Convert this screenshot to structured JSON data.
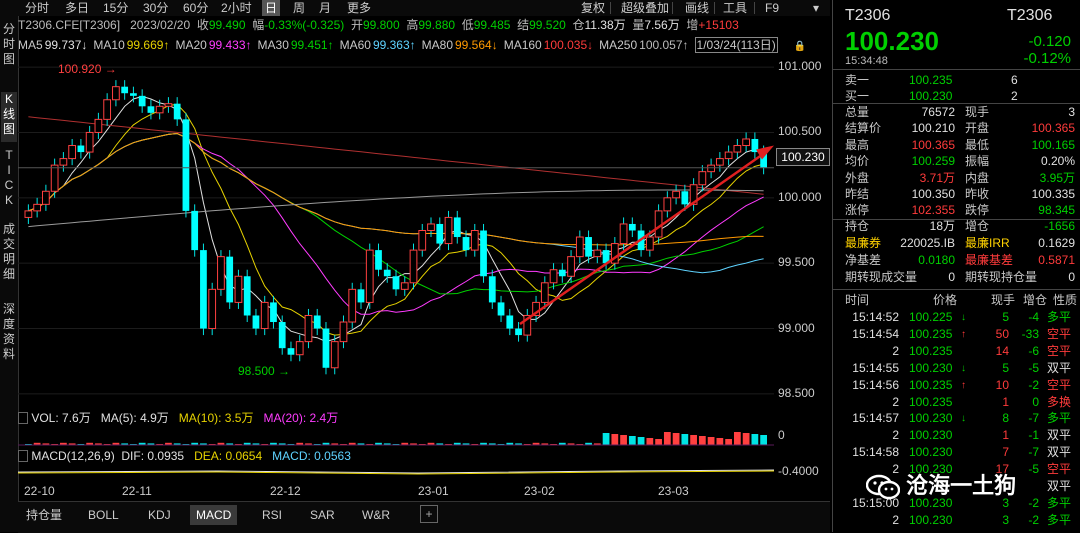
{
  "left_tabs": [
    "分时图",
    "K线图",
    "TICK",
    "成交明细",
    "深度资料"
  ],
  "toolbar": {
    "periods": [
      "分时",
      "多日",
      "15分",
      "30分",
      "60分",
      "2小时",
      "日",
      "周",
      "月",
      "更多"
    ],
    "active_period": "日",
    "tools": [
      "复权",
      "超级叠加",
      "画线",
      "工具",
      "F9"
    ],
    "menu_icon": "chevron-down-icon"
  },
  "info": {
    "symbol": "T2306.CFE[T2306]",
    "date": "2023/02/20",
    "close_label": "收",
    "close": "99.490",
    "change_label": "幅",
    "change": "-0.33%(-0.325)",
    "open_label": "开",
    "open": "99.800",
    "high_label": "高",
    "high": "99.880",
    "low_label": "低",
    "low": "99.485",
    "settle_label": "结",
    "settle": "99.520",
    "oi_label": "仓",
    "oi": "11.38万",
    "vol_label": "量",
    "vol": "7.56万",
    "incr_label": "增",
    "incr": "+15103"
  },
  "ma": [
    {
      "label": "MA5",
      "value": "99.737↓",
      "color": "#e0e0e0"
    },
    {
      "label": "MA10",
      "value": "99.669↑",
      "color": "#e6d200"
    },
    {
      "label": "MA20",
      "value": "99.433↑",
      "color": "#ff3cff"
    },
    {
      "label": "MA30",
      "value": "99.451↑",
      "color": "#00d000"
    },
    {
      "label": "MA60",
      "value": "99.363↑",
      "color": "#5fd3ff"
    },
    {
      "label": "MA80",
      "value": "99.564↓",
      "color": "#ff9900"
    },
    {
      "label": "MA160",
      "value": "100.035↓",
      "color": "#ff3b3b"
    },
    {
      "label": "MA250",
      "value": "100.057↑",
      "color": "#bbbbbb"
    }
  ],
  "ma_extra": "1/03/24(113日)",
  "price_axis": {
    "ticks": [
      "101.000",
      "100.500",
      "100.000",
      "99.500",
      "99.000",
      "98.500"
    ],
    "current": "100.230"
  },
  "annotations": {
    "high_mark": "100.920",
    "low_mark": "98.500"
  },
  "volume": {
    "title": "VOL: 7.6万",
    "ma5": "MA(5): 4.9万",
    "ma10": "MA(10): 3.5万",
    "ma20": "MA(20): 2.4万",
    "axis_label": "0"
  },
  "macd": {
    "title": "MACD(12,26,9)",
    "dif": "DIF: 0.0935",
    "dea": "DEA: 0.0654",
    "macd": "MACD: 0.0563",
    "axis_label": "-0.4000"
  },
  "x_axis": [
    "22-10",
    "22-11",
    "22-12",
    "23-01",
    "23-02",
    "23-03"
  ],
  "bottom_tabs": [
    "持仓量",
    "BOLL",
    "KDJ",
    "MACD",
    "RSI",
    "SAR",
    "W&R"
  ],
  "active_bottom_tab": "MACD",
  "bottom_icons": [
    "add-icon"
  ],
  "quote": {
    "code": "T2306",
    "code2": "T2306",
    "price": "100.230",
    "change": "-0.120",
    "change_pct": "-0.12%",
    "time": "15:34:48",
    "ask_label": "卖一",
    "ask": "100.235",
    "ask_vol": "6",
    "bid_label": "买一",
    "bid": "100.230",
    "bid_vol": "2",
    "stats": [
      {
        "l1": "总量",
        "v1": "76572",
        "c1": "#e0e0e0",
        "l2": "现手",
        "v2": "3",
        "c2": "#e0e0e0"
      },
      {
        "l1": "结算价",
        "v1": "100.210",
        "c1": "#e0e0e0",
        "l2": "开盘",
        "v2": "100.365",
        "c2": "#ff3b3b"
      },
      {
        "l1": "最高",
        "v1": "100.365",
        "c1": "#ff3b3b",
        "l2": "最低",
        "v2": "100.165",
        "c2": "#00d000"
      },
      {
        "l1": "均价",
        "v1": "100.259",
        "c1": "#00d000",
        "l2": "振幅",
        "v2": "0.20%",
        "c2": "#e0e0e0"
      },
      {
        "l1": "外盘",
        "v1": "3.71万",
        "c1": "#ff3b3b",
        "l2": "内盘",
        "v2": "3.95万",
        "c2": "#00d000"
      },
      {
        "l1": "昨结",
        "v1": "100.350",
        "c1": "#e0e0e0",
        "l2": "昨收",
        "v2": "100.335",
        "c2": "#e0e0e0"
      },
      {
        "l1": "涨停",
        "v1": "102.355",
        "c1": "#ff3b3b",
        "l2": "跌停",
        "v2": "98.345",
        "c2": "#00d000"
      }
    ],
    "stats2": [
      {
        "l1": "持仓",
        "v1": "18万",
        "c1": "#e0e0e0",
        "l2": "增仓",
        "v2": "-1656",
        "c2": "#00d000",
        "lc1": "#c8c8c8",
        "lc2": "#c8c8c8"
      },
      {
        "l1": "最廉券",
        "v1": "220025.IB",
        "c1": "#e0e0e0",
        "l2": "最廉IRR",
        "v2": "0.1629",
        "c2": "#e0e0e0",
        "lc1": "#ffd200",
        "lc2": "#ffd200"
      },
      {
        "l1": "净基差",
        "v1": "0.0180",
        "c1": "#00d000",
        "l2": "最廉基差",
        "v2": "0.5871",
        "c2": "#ff3b3b",
        "lc1": "#c8c8c8",
        "lc2": "#ff3b3b"
      },
      {
        "l1": "期转现成交量",
        "v1": "0",
        "c1": "#e0e0e0",
        "l2": "期转现持仓量",
        "v2": "0",
        "c2": "#e0e0e0",
        "lc1": "#c8c8c8",
        "lc2": "#c8c8c8"
      }
    ],
    "ticks_header": [
      "时间",
      "价格",
      "现手",
      "增仓",
      "性质"
    ],
    "ticks": [
      {
        "t": "15:14:52",
        "p": "100.225",
        "dir": "↓",
        "dc": "#00d000",
        "v": "5",
        "vc": "#00d000",
        "i": "-4",
        "n": "多平",
        "nc": "#00d000"
      },
      {
        "t": "15:14:54",
        "p": "100.235",
        "dir": "↑",
        "dc": "#ff3b3b",
        "v": "50",
        "vc": "#ff3b3b",
        "i": "-33",
        "n": "空平",
        "nc": "#ff3b3b"
      },
      {
        "t": "2",
        "p": "100.235",
        "dir": "",
        "dc": "",
        "v": "14",
        "vc": "#ff3b3b",
        "i": "-6",
        "n": "空平",
        "nc": "#ff3b3b"
      },
      {
        "t": "15:14:55",
        "p": "100.230",
        "dir": "↓",
        "dc": "#00d000",
        "v": "5",
        "vc": "#00d000",
        "i": "-5",
        "n": "双平",
        "nc": "#e0e0e0"
      },
      {
        "t": "15:14:56",
        "p": "100.235",
        "dir": "↑",
        "dc": "#ff3b3b",
        "v": "10",
        "vc": "#ff3b3b",
        "i": "-2",
        "n": "空平",
        "nc": "#ff3b3b"
      },
      {
        "t": "2",
        "p": "100.235",
        "dir": "",
        "dc": "",
        "v": "1",
        "vc": "#ff3b3b",
        "i": "0",
        "n": "多换",
        "nc": "#ff3b3b"
      },
      {
        "t": "15:14:57",
        "p": "100.230",
        "dir": "↓",
        "dc": "#00d000",
        "v": "8",
        "vc": "#00d000",
        "i": "-7",
        "n": "多平",
        "nc": "#00d000"
      },
      {
        "t": "2",
        "p": "100.230",
        "dir": "",
        "dc": "",
        "v": "1",
        "vc": "#ff3b3b",
        "i": "-1",
        "n": "双平",
        "nc": "#e0e0e0"
      },
      {
        "t": "15:14:58",
        "p": "100.230",
        "dir": "",
        "dc": "",
        "v": "7",
        "vc": "#ff3b3b",
        "i": "-7",
        "n": "双平",
        "nc": "#e0e0e0"
      },
      {
        "t": "2",
        "p": "100.230",
        "dir": "",
        "dc": "",
        "v": "17",
        "vc": "#ff3b3b",
        "i": "-5",
        "n": "空平",
        "nc": "#ff3b3b"
      },
      {
        "t": "",
        "p": "",
        "dir": "",
        "dc": "",
        "v": "",
        "vc": "",
        "i": "",
        "n": "双平",
        "nc": "#e0e0e0"
      },
      {
        "t": "15:15:00",
        "p": "100.230",
        "dir": "",
        "dc": "",
        "v": "3",
        "vc": "#00d000",
        "i": "-2",
        "n": "多平",
        "nc": "#00d000"
      },
      {
        "t": "2",
        "p": "100.230",
        "dir": "",
        "dc": "",
        "v": "3",
        "vc": "#00d000",
        "i": "-2",
        "n": "多平",
        "nc": "#00d000"
      }
    ]
  },
  "watermark": "沧海一土狗",
  "chart_data": {
    "type": "candlestick",
    "ylim": [
      98.4,
      101.1
    ],
    "close_series": [
      99.9,
      99.95,
      100.05,
      100.25,
      100.3,
      100.4,
      100.35,
      100.5,
      100.6,
      100.75,
      100.85,
      100.8,
      100.78,
      100.7,
      100.65,
      100.7,
      100.72,
      100.6,
      99.9,
      99.6,
      99.0,
      99.3,
      99.55,
      99.2,
      99.4,
      99.1,
      99.0,
      99.2,
      99.05,
      98.85,
      98.8,
      98.9,
      99.1,
      99.0,
      98.7,
      98.9,
      99.05,
      99.3,
      99.2,
      99.6,
      99.45,
      99.4,
      99.3,
      99.35,
      99.6,
      99.75,
      99.8,
      99.65,
      99.85,
      99.7,
      99.6,
      99.75,
      99.4,
      99.2,
      99.1,
      99.0,
      98.95,
      99.1,
      99.2,
      99.35,
      99.45,
      99.4,
      99.55,
      99.7,
      99.55,
      99.6,
      99.5,
      99.65,
      99.8,
      99.75,
      99.6,
      99.7,
      99.9,
      100.0,
      100.05,
      99.95,
      100.1,
      100.2,
      100.25,
      100.3,
      100.35,
      100.4,
      100.45,
      100.35,
      100.23
    ]
  }
}
